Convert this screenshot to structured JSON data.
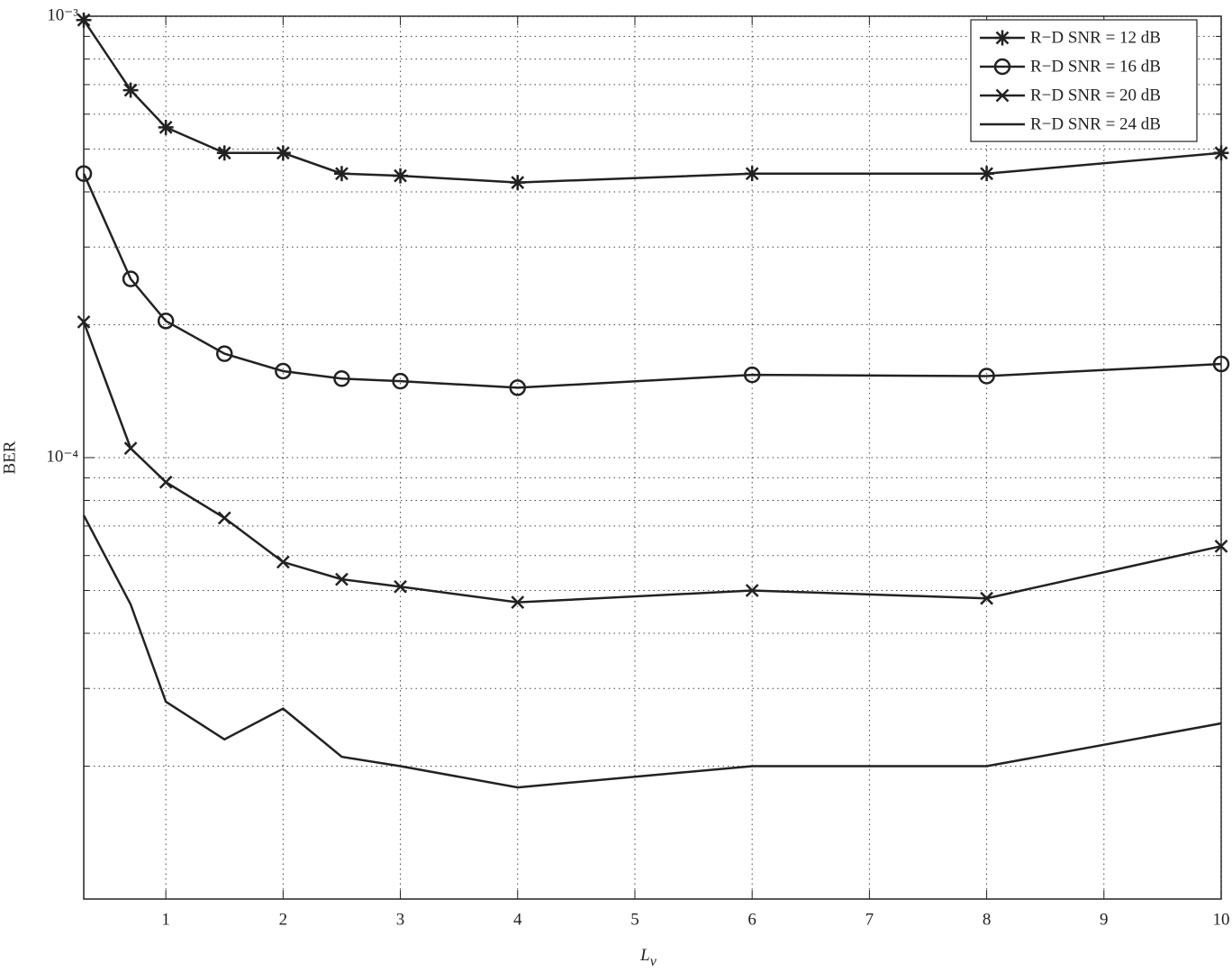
{
  "chart_data": {
    "type": "line",
    "xlabel": "L",
    "xlabel_sub": "v",
    "ylabel": "BER",
    "x": [
      0.3,
      0.7,
      1,
      1.5,
      2,
      2.5,
      3,
      4,
      6,
      8,
      10
    ],
    "series": [
      {
        "name": "R−D SNR = 12 dB",
        "color": "#222222",
        "marker": "star",
        "values": [
          0.00098,
          0.00068,
          0.00056,
          0.00049,
          0.00049,
          0.00044,
          0.000435,
          0.00042,
          0.00044,
          0.00044,
          0.00049
        ]
      },
      {
        "name": "R−D SNR = 16 dB",
        "color": "#222222",
        "marker": "circle",
        "values": [
          0.00044,
          0.000254,
          0.000204,
          0.000172,
          0.000157,
          0.000151,
          0.000149,
          0.000144,
          0.000154,
          0.000153,
          0.000163
        ]
      },
      {
        "name": "R−D SNR = 20 dB",
        "color": "#222222",
        "marker": "x",
        "values": [
          0.000203,
          0.000105,
          8.8e-05,
          7.3e-05,
          5.8e-05,
          5.3e-05,
          5.1e-05,
          4.7e-05,
          5e-05,
          4.8e-05,
          6.3e-05
        ]
      },
      {
        "name": "R−D SNR = 24 dB",
        "color": "#222222",
        "marker": "none",
        "values": [
          7.4e-05,
          4.65e-05,
          2.8e-05,
          2.3e-05,
          2.7e-05,
          2.1e-05,
          2e-05,
          1.79e-05,
          2e-05,
          2e-05,
          2.5e-05
        ]
      }
    ],
    "xlim": [
      0.3,
      10
    ],
    "xticks": [
      1,
      2,
      3,
      4,
      5,
      6,
      7,
      8,
      9,
      10
    ],
    "ylim": [
      1e-05,
      0.001
    ],
    "ylog": true,
    "yticks": [
      {
        "value": 0.001,
        "label": "10⁻³"
      },
      {
        "value": 0.0001,
        "label": "10⁻⁴"
      }
    ],
    "yminor_ticks": [
      2e-05,
      3e-05,
      4e-05,
      5e-05,
      6e-05,
      7e-05,
      8e-05,
      9e-05,
      0.0002,
      0.0003,
      0.0004,
      0.0005,
      0.0006,
      0.0007,
      0.0008,
      0.0009
    ],
    "grid": true,
    "legend": "upper right"
  }
}
